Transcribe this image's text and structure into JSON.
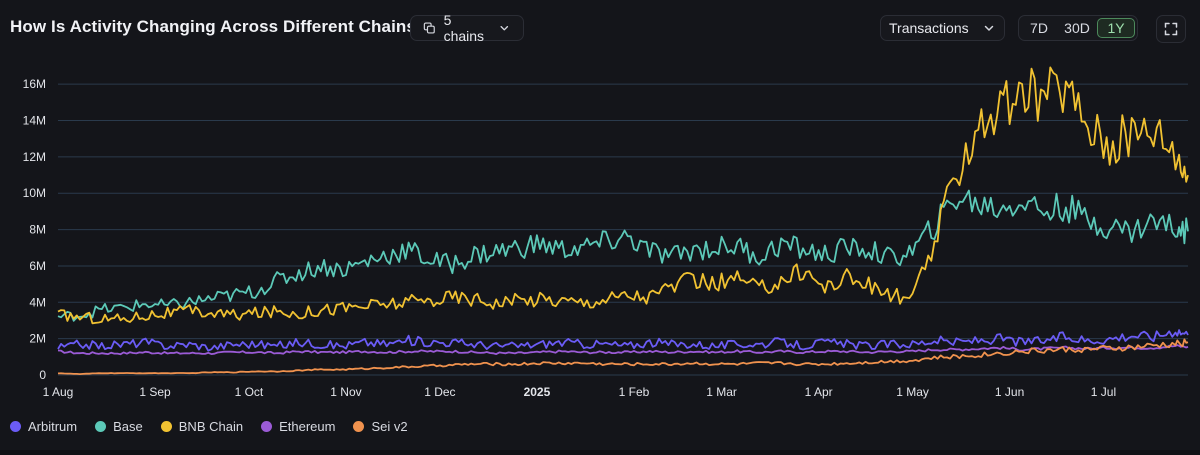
{
  "header": {
    "title": "How Is Activity Changing Across Different Chains?",
    "chains_label": "5 chains",
    "metric_label": "Transactions",
    "ranges": [
      "7D",
      "30D",
      "1Y"
    ],
    "active_range": "1Y"
  },
  "colors": {
    "background": "#14151a",
    "grid": "#2a3a4c",
    "axis_text": "#e3e5ea",
    "Arbitrum": "#6b5cf6",
    "Base": "#5cc9b8",
    "BNB Chain": "#f1c232",
    "Ethereum": "#9b5bd6",
    "Sei v2": "#f0924e"
  },
  "chart_data": {
    "type": "line",
    "title": "How Is Activity Changing Across Different Chains?",
    "xlabel": "",
    "ylabel": "",
    "x_tick_labels": [
      "1 Aug",
      "1 Sep",
      "1 Oct",
      "1 Nov",
      "1 Dec",
      "2025",
      "1 Feb",
      "1 Mar",
      "1 Apr",
      "1 May",
      "1 Jun",
      "1 Jul"
    ],
    "y_tick_labels": [
      "0",
      "2M",
      "4M",
      "6M",
      "8M",
      "10M",
      "12M",
      "14M",
      "16M"
    ],
    "ylim": [
      0,
      16000000
    ],
    "xlim": [
      "2024-08-01",
      "2025-07-28"
    ],
    "grid": true,
    "legend_position": "bottom-left",
    "sampling": "approximate weekly values read from chart",
    "x": [
      "2024-08-01",
      "2024-08-08",
      "2024-08-15",
      "2024-08-22",
      "2024-08-29",
      "2024-09-05",
      "2024-09-12",
      "2024-09-19",
      "2024-09-26",
      "2024-10-03",
      "2024-10-10",
      "2024-10-17",
      "2024-10-24",
      "2024-10-31",
      "2024-11-07",
      "2024-11-14",
      "2024-11-21",
      "2024-11-28",
      "2024-12-05",
      "2024-12-12",
      "2024-12-19",
      "2024-12-26",
      "2025-01-02",
      "2025-01-09",
      "2025-01-16",
      "2025-01-23",
      "2025-01-30",
      "2025-02-06",
      "2025-02-13",
      "2025-02-20",
      "2025-02-27",
      "2025-03-06",
      "2025-03-13",
      "2025-03-20",
      "2025-03-27",
      "2025-04-03",
      "2025-04-10",
      "2025-04-17",
      "2025-04-24",
      "2025-05-01",
      "2025-05-08",
      "2025-05-15",
      "2025-05-22",
      "2025-05-29",
      "2025-06-05",
      "2025-06-12",
      "2025-06-19",
      "2025-06-26",
      "2025-07-03",
      "2025-07-10",
      "2025-07-17",
      "2025-07-24",
      "2025-07-28"
    ],
    "series": [
      {
        "name": "Arbitrum",
        "values": [
          1500000,
          1700000,
          1600000,
          1700000,
          1800000,
          1600000,
          1700000,
          1500000,
          1700000,
          1700000,
          1600000,
          1800000,
          1700000,
          1600000,
          1800000,
          1700000,
          1900000,
          1800000,
          1800000,
          1700000,
          1600000,
          1600000,
          1700000,
          1800000,
          1700000,
          1700000,
          1600000,
          1800000,
          1700000,
          1700000,
          1600000,
          1700000,
          1700000,
          1800000,
          1600000,
          1800000,
          1700000,
          1600000,
          1700000,
          1700000,
          1900000,
          1800000,
          1900000,
          2000000,
          1800000,
          1900000,
          2100000,
          1900000,
          2000000,
          2200000,
          2100000,
          2500000,
          2200000
        ]
      },
      {
        "name": "Base",
        "values": [
          3200000,
          3300000,
          3600000,
          3700000,
          3900000,
          3800000,
          4000000,
          4200000,
          4400000,
          4600000,
          5200000,
          5600000,
          6000000,
          5800000,
          6200000,
          6600000,
          6900000,
          6300000,
          6100000,
          6600000,
          6800000,
          7000000,
          7200000,
          6900000,
          7000000,
          7300000,
          7600000,
          6800000,
          6500000,
          6900000,
          7000000,
          7100000,
          6500000,
          7200000,
          6900000,
          6600000,
          7000000,
          6900000,
          6400000,
          6800000,
          8200000,
          9800000,
          9400000,
          9200000,
          9600000,
          9000000,
          9300000,
          8500000,
          8200000,
          7900000,
          8500000,
          8100000,
          7900000
        ]
      },
      {
        "name": "BNB Chain",
        "values": [
          3300000,
          3200000,
          3100000,
          3100000,
          3300000,
          3400000,
          3500000,
          3400000,
          3300000,
          3400000,
          3500000,
          3400000,
          3600000,
          3700000,
          3800000,
          3900000,
          4000000,
          4100000,
          4300000,
          4200000,
          4000000,
          4100000,
          4200000,
          4100000,
          4000000,
          4200000,
          4400000,
          4300000,
          4900000,
          5200000,
          5000000,
          5300000,
          4700000,
          5200000,
          5800000,
          4800000,
          5400000,
          4900000,
          4400000,
          4200000,
          7200000,
          11200000,
          13800000,
          14600000,
          15200000,
          15600000,
          15800000,
          13900000,
          12600000,
          13300000,
          13700000,
          12400000,
          11000000
        ]
      },
      {
        "name": "Ethereum",
        "values": [
          1300000,
          1200000,
          1200000,
          1200000,
          1250000,
          1200000,
          1200000,
          1200000,
          1250000,
          1250000,
          1200000,
          1300000,
          1250000,
          1250000,
          1300000,
          1250000,
          1300000,
          1300000,
          1300000,
          1250000,
          1200000,
          1200000,
          1250000,
          1300000,
          1250000,
          1250000,
          1250000,
          1300000,
          1250000,
          1300000,
          1250000,
          1300000,
          1250000,
          1300000,
          1250000,
          1300000,
          1300000,
          1250000,
          1300000,
          1300000,
          1400000,
          1400000,
          1450000,
          1500000,
          1400000,
          1450000,
          1500000,
          1450000,
          1500000,
          1500000,
          1500000,
          1600000,
          1550000
        ]
      },
      {
        "name": "Sei v2",
        "values": [
          100000,
          50000,
          100000,
          100000,
          100000,
          100000,
          100000,
          150000,
          150000,
          200000,
          200000,
          250000,
          300000,
          300000,
          350000,
          400000,
          450000,
          500000,
          550000,
          600000,
          600000,
          600000,
          650000,
          650000,
          650000,
          600000,
          600000,
          600000,
          600000,
          650000,
          600000,
          600000,
          650000,
          650000,
          600000,
          600000,
          650000,
          700000,
          750000,
          800000,
          950000,
          1000000,
          1100000,
          1200000,
          1300000,
          1350000,
          1400000,
          1400000,
          1450000,
          1500000,
          1600000,
          1700000,
          1800000
        ]
      }
    ]
  },
  "legend": [
    {
      "label": "Arbitrum",
      "color": "#6b5cf6"
    },
    {
      "label": "Base",
      "color": "#5cc9b8"
    },
    {
      "label": "BNB Chain",
      "color": "#f1c232"
    },
    {
      "label": "Ethereum",
      "color": "#9b5bd6"
    },
    {
      "label": "Sei v2",
      "color": "#f0924e"
    }
  ]
}
